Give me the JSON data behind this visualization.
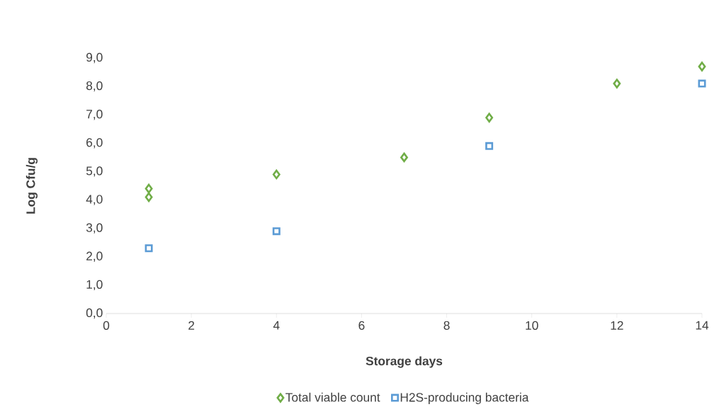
{
  "chart_data": {
    "type": "scatter",
    "xlabel": "Storage days",
    "ylabel": "Log Cfu/g",
    "xlim": [
      0,
      14
    ],
    "ylim": [
      0,
      9
    ],
    "xticks": [
      0,
      2,
      4,
      6,
      8,
      10,
      12,
      14
    ],
    "yticks": [
      {
        "value": 0,
        "label": "0,0"
      },
      {
        "value": 1,
        "label": "1,0"
      },
      {
        "value": 2,
        "label": "2,0"
      },
      {
        "value": 3,
        "label": "3,0"
      },
      {
        "value": 4,
        "label": "4,0"
      },
      {
        "value": 5,
        "label": "5,0"
      },
      {
        "value": 6,
        "label": "6,0"
      },
      {
        "value": 7,
        "label": "7,0"
      },
      {
        "value": 8,
        "label": "8,0"
      },
      {
        "value": 9,
        "label": "9,0"
      }
    ],
    "grid": false,
    "legend": "bottom",
    "series": [
      {
        "name": "Total viable count",
        "color": "#70ad47",
        "marker": "diamond",
        "x": [
          1,
          1,
          4,
          7,
          9,
          12,
          14
        ],
        "values": [
          4.4,
          4.1,
          4.9,
          5.5,
          6.9,
          8.1,
          8.7
        ]
      },
      {
        "name": "H2S-producing bacteria",
        "color": "#5b9bd5",
        "marker": "square",
        "x": [
          1,
          4,
          9,
          14
        ],
        "values": [
          2.3,
          2.9,
          5.9,
          8.1
        ]
      }
    ]
  }
}
